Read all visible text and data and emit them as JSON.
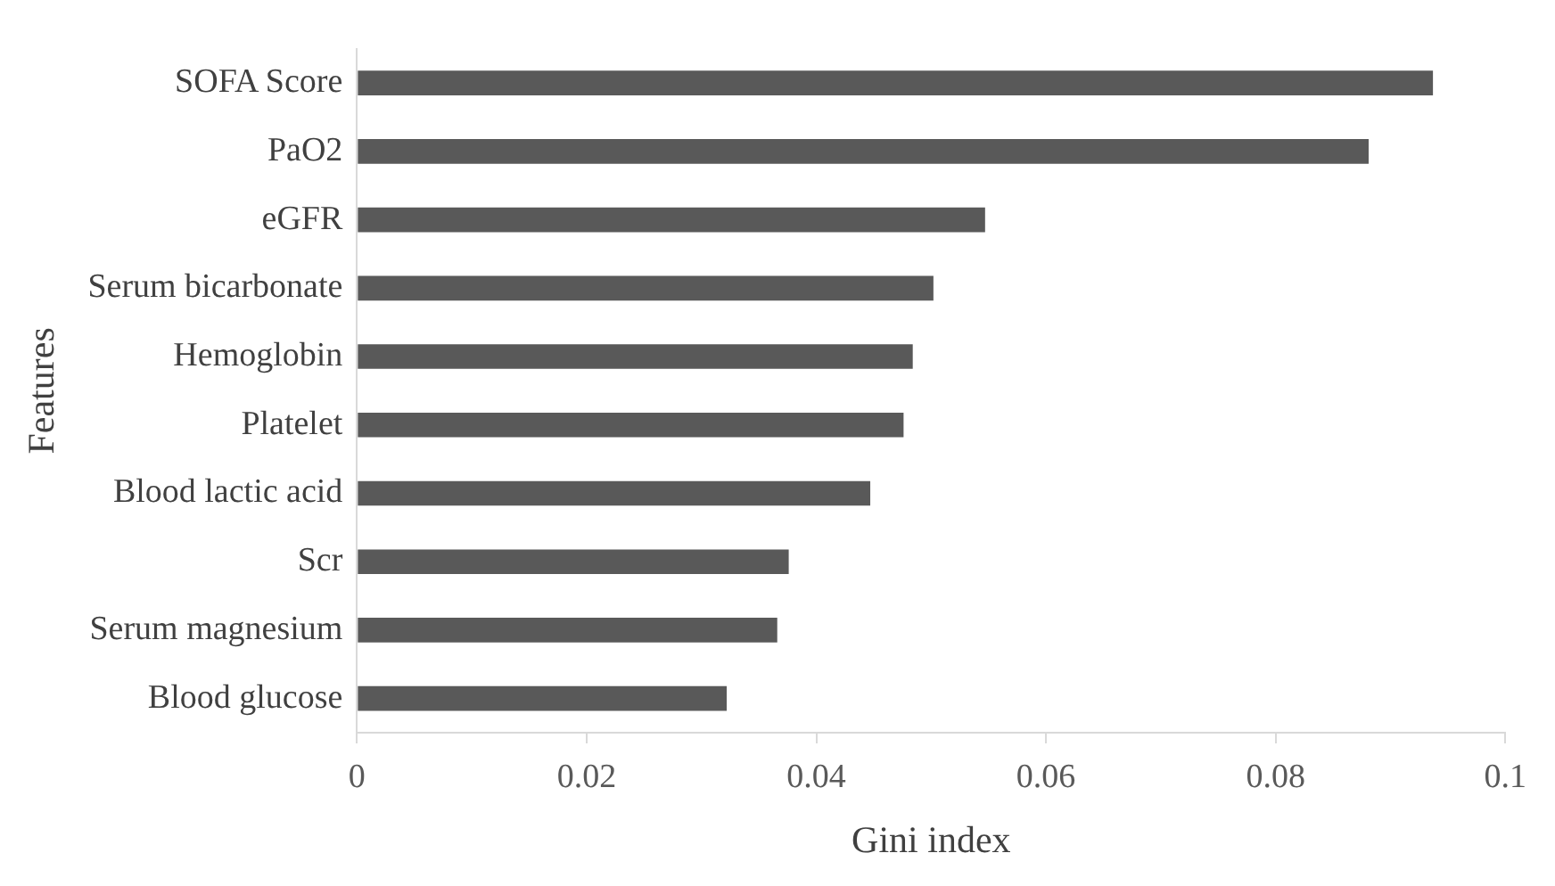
{
  "chart_data": {
    "type": "bar",
    "orientation": "horizontal",
    "xlabel": "Gini index",
    "ylabel": "Features",
    "categories": [
      "SOFA Score",
      "PaO2",
      "eGFR",
      "Serum bicarbonate",
      "Hemoglobin",
      "Platelet",
      "Blood lactic acid",
      "Scr",
      "Serum magnesium",
      "Blood glucose"
    ],
    "values": [
      0.0937,
      0.0881,
      0.0547,
      0.0502,
      0.0484,
      0.0476,
      0.0447,
      0.0376,
      0.0366,
      0.0322
    ],
    "color": "#595959",
    "xlim": [
      0,
      0.1
    ],
    "xticks": [
      0,
      0.02,
      0.04,
      0.06,
      0.08,
      0.1
    ],
    "grid": false
  }
}
